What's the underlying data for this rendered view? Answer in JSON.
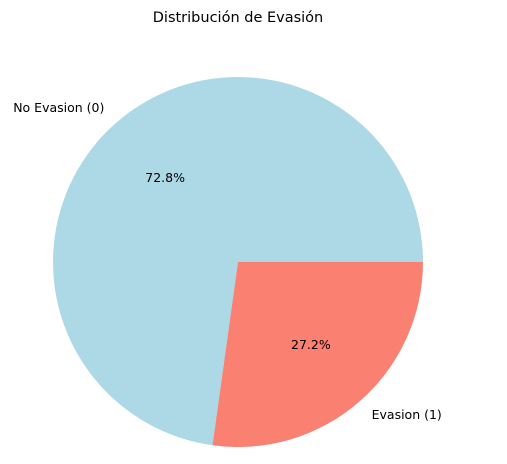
{
  "chart_data": {
    "type": "pie",
    "title": "Distribución de Evasión",
    "labels": [
      "No Evasion (0)",
      "Evasion (1)"
    ],
    "values": [
      72.8,
      27.2
    ],
    "percent_labels": [
      "72.8%",
      "27.2%"
    ],
    "colors": [
      "#add8e6",
      "#fa8072"
    ],
    "start_angle_deg": 0,
    "direction": "counterclockwise",
    "legend": "none"
  }
}
